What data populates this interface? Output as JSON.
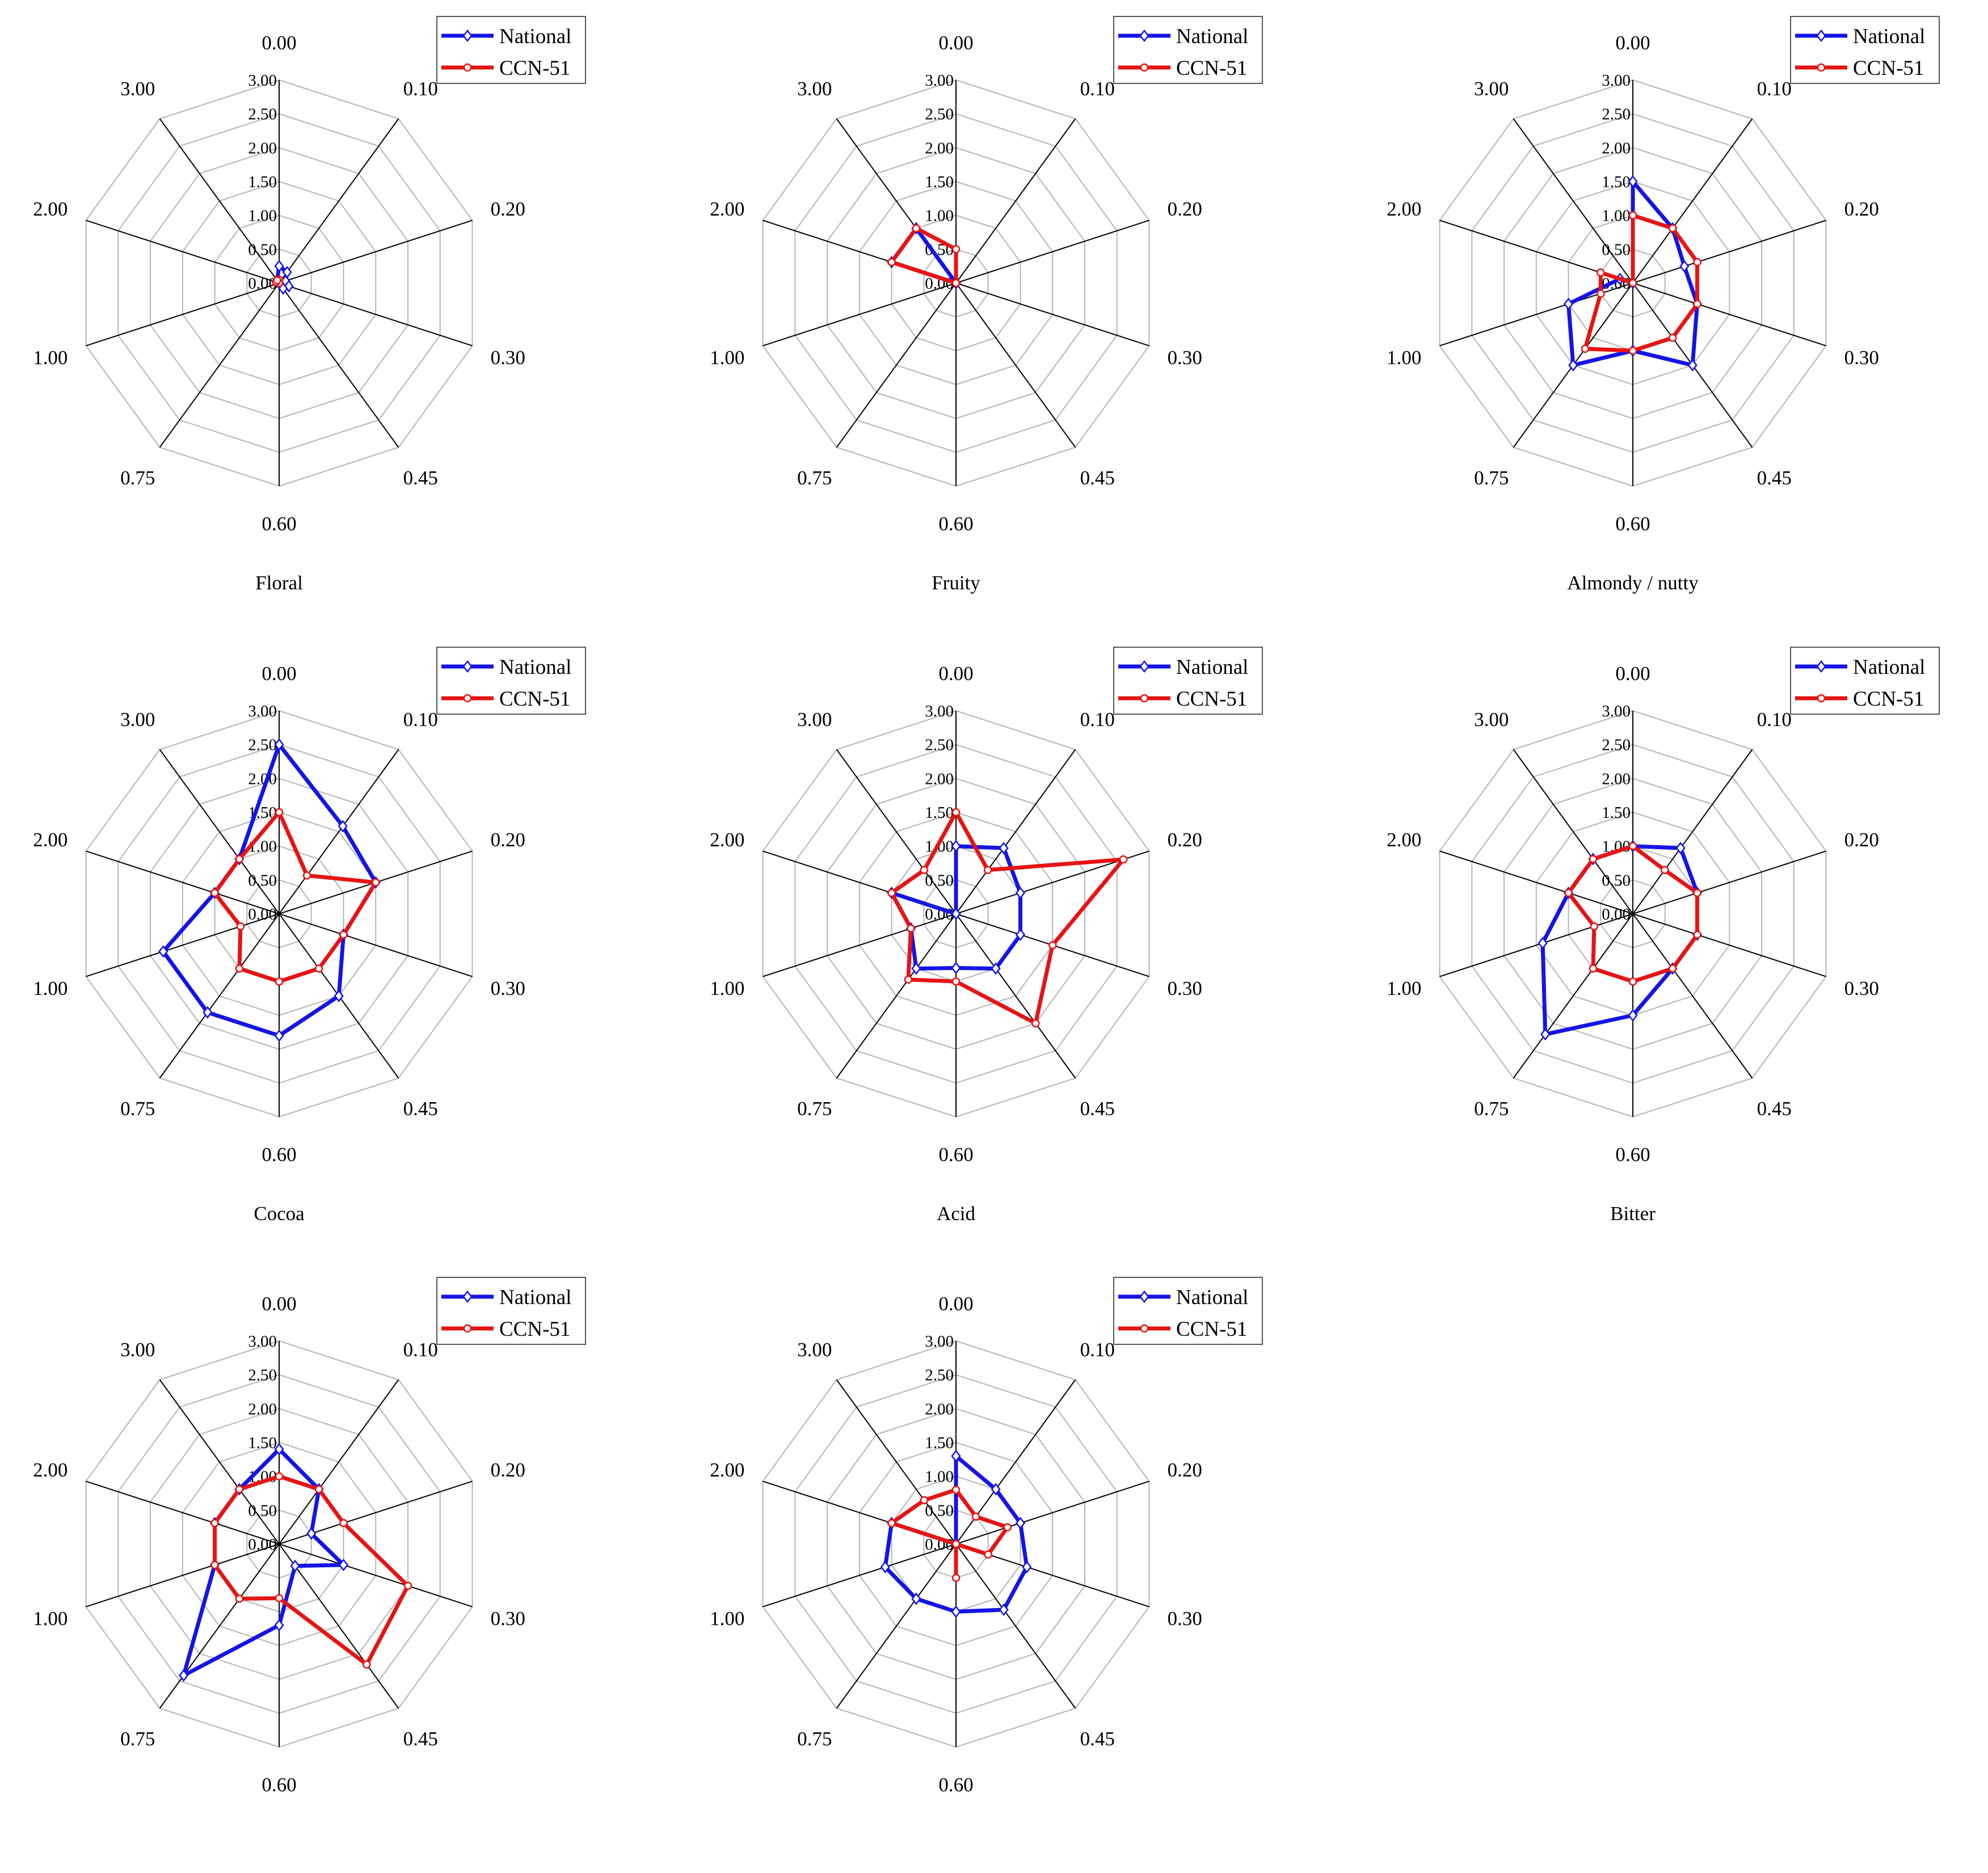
{
  "colors": {
    "national": "#1414e6",
    "ccn51": "#e61414",
    "grid": "#b5b5b5",
    "spoke": "#000000"
  },
  "chart_data": [
    {
      "type": "radar",
      "title": "Floral",
      "categories": [
        "0.00",
        "0.10",
        "0.20",
        "0.30",
        "0.45",
        "0.60",
        "0.75",
        "1.00",
        "2.00",
        "3.00"
      ],
      "rlim": [
        0,
        3
      ],
      "rticks": [
        "0.00",
        "0.50",
        "1.00",
        "1.50",
        "2.00",
        "2.50",
        "3.00"
      ],
      "legend": "top-right",
      "series": [
        {
          "name": "National",
          "values": [
            0.25,
            0.2,
            0.1,
            0.15,
            0.1,
            0,
            0,
            0,
            0,
            0.05
          ]
        },
        {
          "name": "CCN-51",
          "values": [
            0.05,
            0,
            0,
            0,
            0,
            0,
            0,
            0,
            0.05,
            0.05
          ]
        }
      ]
    },
    {
      "type": "radar",
      "title": "Fruity",
      "categories": [
        "0.00",
        "0.10",
        "0.20",
        "0.30",
        "0.45",
        "0.60",
        "0.75",
        "1.00",
        "2.00",
        "3.00"
      ],
      "rlim": [
        0,
        3
      ],
      "rticks": [
        "0.00",
        "0.50",
        "1.00",
        "1.50",
        "2.00",
        "2.50",
        "3.00"
      ],
      "legend": "top-right",
      "series": [
        {
          "name": "National",
          "values": [
            0,
            0,
            0,
            0,
            0,
            0,
            0,
            0,
            1.0,
            1.0
          ]
        },
        {
          "name": "CCN-51",
          "values": [
            0.5,
            0,
            0,
            0,
            0,
            0,
            0,
            0,
            1.0,
            1.0
          ]
        }
      ]
    },
    {
      "type": "radar",
      "title": "Almondy / nutty",
      "categories": [
        "0.00",
        "0.10",
        "0.20",
        "0.30",
        "0.45",
        "0.60",
        "0.75",
        "1.00",
        "2.00",
        "3.00"
      ],
      "rlim": [
        0,
        3
      ],
      "rticks": [
        "0.00",
        "0.50",
        "1.00",
        "1.50",
        "2.00",
        "2.50",
        "3.00"
      ],
      "legend": "top-right",
      "series": [
        {
          "name": "National",
          "values": [
            1.5,
            1.0,
            0.8,
            1.0,
            1.5,
            1.0,
            1.5,
            1.0,
            0.2,
            0
          ]
        },
        {
          "name": "CCN-51",
          "values": [
            1.0,
            1.0,
            1.0,
            1.0,
            1.0,
            1.0,
            1.2,
            0.5,
            0.5,
            0
          ]
        }
      ]
    },
    {
      "type": "radar",
      "title": "Cocoa",
      "categories": [
        "0.00",
        "0.10",
        "0.20",
        "0.30",
        "0.45",
        "0.60",
        "0.75",
        "1.00",
        "2.00",
        "3.00"
      ],
      "rlim": [
        0,
        3
      ],
      "rticks": [
        "0.00",
        "0.50",
        "1.00",
        "1.50",
        "2.00",
        "2.50",
        "3.00"
      ],
      "legend": "top-right",
      "series": [
        {
          "name": "National",
          "values": [
            2.5,
            1.6,
            1.5,
            1.0,
            1.5,
            1.8,
            1.8,
            1.8,
            1.0,
            1.0
          ]
        },
        {
          "name": "CCN-51",
          "values": [
            1.5,
            0.7,
            1.5,
            1.0,
            1.0,
            1.0,
            1.0,
            0.6,
            1.0,
            1.0
          ]
        }
      ]
    },
    {
      "type": "radar",
      "title": "Acid",
      "categories": [
        "0.00",
        "0.10",
        "0.20",
        "0.30",
        "0.45",
        "0.60",
        "0.75",
        "1.00",
        "2.00",
        "3.00"
      ],
      "rlim": [
        0,
        3
      ],
      "rticks": [
        "0.00",
        "0.50",
        "1.00",
        "1.50",
        "2.00",
        "2.50",
        "3.00"
      ],
      "legend": "top-right",
      "series": [
        {
          "name": "National",
          "values": [
            1.0,
            1.2,
            1.0,
            1.0,
            1.0,
            0.8,
            1.0,
            0.7,
            1.0,
            0
          ]
        },
        {
          "name": "CCN-51",
          "values": [
            1.5,
            0.8,
            2.6,
            1.5,
            2.0,
            1.0,
            1.2,
            0.7,
            1.0,
            0.8
          ]
        }
      ]
    },
    {
      "type": "radar",
      "title": "Bitter",
      "categories": [
        "0.00",
        "0.10",
        "0.20",
        "0.30",
        "0.45",
        "0.60",
        "0.75",
        "1.00",
        "2.00",
        "3.00"
      ],
      "rlim": [
        0,
        3
      ],
      "rticks": [
        "0.00",
        "0.50",
        "1.00",
        "1.50",
        "2.00",
        "2.50",
        "3.00"
      ],
      "legend": "top-right",
      "series": [
        {
          "name": "National",
          "values": [
            1.0,
            1.2,
            1.0,
            1.0,
            1.0,
            1.5,
            2.2,
            1.4,
            1.0,
            1.0
          ]
        },
        {
          "name": "CCN-51",
          "values": [
            1.0,
            0.8,
            1.0,
            1.0,
            1.0,
            1.0,
            1.0,
            0.6,
            1.0,
            1.0
          ]
        }
      ]
    },
    {
      "type": "radar",
      "title": "",
      "categories": [
        "0.00",
        "0.10",
        "0.20",
        "0.30",
        "0.45",
        "0.60",
        "0.75",
        "1.00",
        "2.00",
        "3.00"
      ],
      "rlim": [
        0,
        3
      ],
      "rticks": [
        "0.00",
        "0.50",
        "1.00",
        "1.50",
        "2.00",
        "2.50",
        "3.00"
      ],
      "legend": "top-right",
      "series": [
        {
          "name": "National",
          "values": [
            1.4,
            1.0,
            0.5,
            1.0,
            0.4,
            1.2,
            2.4,
            1.0,
            1.0,
            1.0
          ]
        },
        {
          "name": "CCN-51",
          "values": [
            1.0,
            1.0,
            1.0,
            2.0,
            2.2,
            0.8,
            1.0,
            1.0,
            1.0,
            1.0
          ]
        }
      ]
    },
    {
      "type": "radar",
      "title": "",
      "categories": [
        "0.00",
        "0.10",
        "0.20",
        "0.30",
        "0.45",
        "0.60",
        "0.75",
        "1.00",
        "2.00",
        "3.00"
      ],
      "rlim": [
        0,
        3
      ],
      "rticks": [
        "0.00",
        "0.50",
        "1.00",
        "1.50",
        "2.00",
        "2.50",
        "3.00"
      ],
      "legend": "top-right",
      "series": [
        {
          "name": "National",
          "values": [
            1.3,
            1.0,
            1.0,
            1.1,
            1.2,
            1.0,
            1.0,
            1.1,
            1.0,
            0
          ]
        },
        {
          "name": "CCN-51",
          "values": [
            0.8,
            0.5,
            0.8,
            0.5,
            0,
            0.5,
            0,
            0,
            1.0,
            0.8
          ]
        }
      ]
    }
  ]
}
